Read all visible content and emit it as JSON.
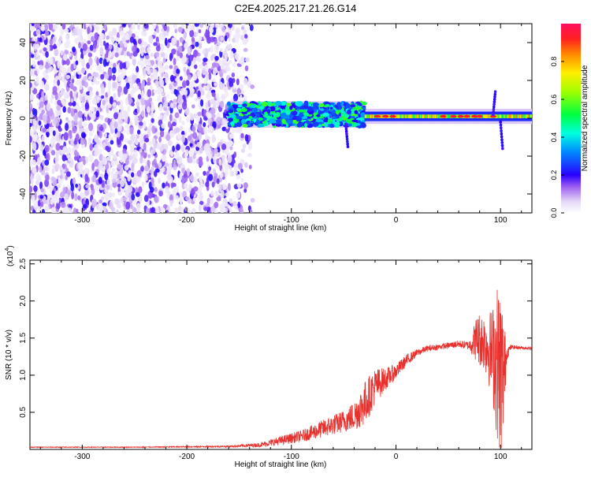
{
  "title": "C2E4.2025.217.21.26.G14",
  "colors": {
    "snr_line": "#e8302c",
    "spectrogram_low": "#d8c8f0",
    "spectrogram_mid": "#7a1ee0",
    "spectrogram_high": "#ff2060"
  },
  "chart_data": [
    {
      "type": "heatmap",
      "xlabel": "Height of straight line (km)",
      "ylabel": "Frequency (Hz)",
      "xlim": [
        -350,
        130
      ],
      "ylim": [
        -50,
        50
      ],
      "xticks": [
        -300,
        -200,
        -100,
        0,
        100
      ],
      "yticks": [
        -40,
        -20,
        0,
        20,
        40
      ],
      "colorbar": {
        "label": "Normalized spectral amplitude",
        "range": [
          0.0,
          1.0
        ],
        "ticks": [
          0.0,
          0.2,
          0.4,
          0.6,
          0.8
        ],
        "tick_labels": [
          "0.0",
          "0.2",
          "0.4",
          "0.6",
          "0.8"
        ],
        "colormap": "rainbow"
      },
      "description_regions": [
        {
          "x_from": -350,
          "x_to": -160,
          "pattern": "noise",
          "amplitude": 0.1
        },
        {
          "x_from": -160,
          "x_to": -30,
          "pattern": "scattered",
          "center_hz": 2,
          "width_hz": 6,
          "amplitude": 0.4
        },
        {
          "x_from": -30,
          "x_to": 130,
          "pattern": "band",
          "center_hz": 1,
          "width_hz": 3,
          "amplitude": 0.75
        }
      ]
    },
    {
      "type": "line",
      "xlabel": "Height of straight line (km)",
      "ylabel": "SNR (10 * v/v)",
      "y_scale_label": "(x10",
      "y_scale_exp": "4",
      "xlim": [
        -350,
        130
      ],
      "ylim": [
        0,
        2.55
      ],
      "xticks": [
        -300,
        -200,
        -100,
        0,
        100
      ],
      "yticks": [
        0.5,
        1.0,
        1.5,
        2.0,
        2.5
      ],
      "ytick_labels": [
        "0.5",
        "1.0",
        "1.5",
        "2.0",
        "2.5"
      ],
      "series": [
        {
          "x": [
            -350,
            -250,
            -160,
            -130,
            -110,
            -90,
            -70,
            -50,
            -40,
            -30,
            -20,
            -10,
            0,
            10,
            20,
            30,
            40,
            50,
            60,
            70,
            78,
            85,
            92,
            96,
            100,
            103,
            106,
            110,
            120,
            130
          ],
          "values": [
            0.03,
            0.03,
            0.04,
            0.06,
            0.12,
            0.18,
            0.28,
            0.38,
            0.45,
            0.62,
            0.85,
            0.95,
            1.05,
            1.2,
            1.3,
            1.36,
            1.38,
            1.4,
            1.42,
            1.4,
            1.5,
            1.45,
            1.3,
            1.2,
            1.1,
            1.0,
            1.3,
            1.38,
            1.37,
            1.36
          ],
          "spread": [
            0.005,
            0.005,
            0.01,
            0.03,
            0.06,
            0.08,
            0.12,
            0.15,
            0.2,
            0.3,
            0.25,
            0.15,
            0.1,
            0.08,
            0.05,
            0.04,
            0.04,
            0.04,
            0.05,
            0.06,
            0.35,
            0.4,
            0.6,
            1.0,
            1.3,
            0.8,
            0.1,
            0.03,
            0.02,
            0.02
          ]
        }
      ]
    }
  ]
}
